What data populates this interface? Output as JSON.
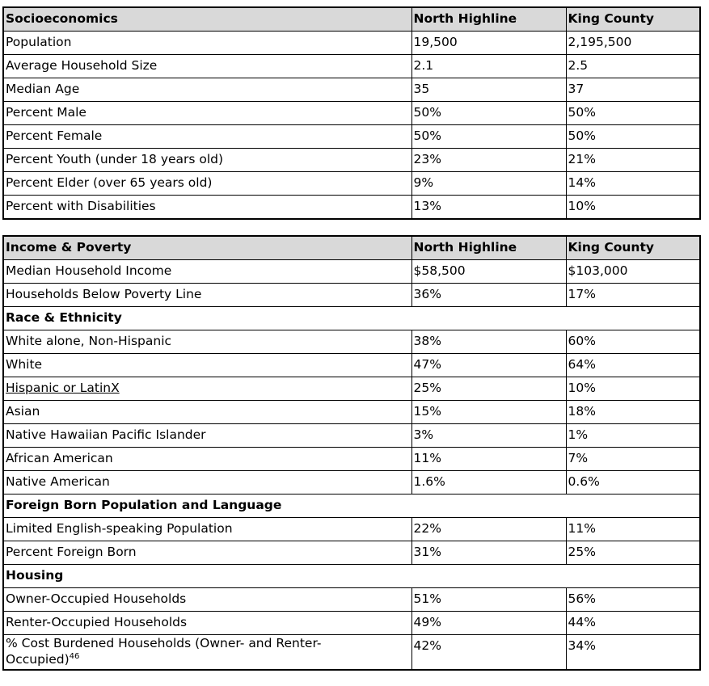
{
  "tables": [
    {
      "header": [
        "Socioeconomics",
        "North Highline",
        "King County"
      ],
      "rows": [
        [
          "Population",
          "19,500",
          "2,195,500"
        ],
        [
          "Average Household Size",
          "2.1",
          "2.5"
        ],
        [
          "Median Age",
          "35",
          "37"
        ],
        [
          "Percent Male",
          "50%",
          "50%"
        ],
        [
          "Percent Female",
          "50%",
          "50%"
        ],
        [
          "Percent Youth (under 18 years old)",
          "23%",
          "21%"
        ],
        [
          "Percent Elder (over 65 years old)",
          "9%",
          "14%"
        ],
        [
          "Percent with Disabilities",
          "13%",
          "10%"
        ]
      ]
    },
    {
      "header": [
        "Income & Poverty",
        "North Highline",
        "King County"
      ],
      "rows": [
        [
          "Median Household Income",
          "$58,500",
          "$103,000"
        ],
        [
          "Households Below Poverty Line",
          "36%",
          "17%"
        ],
        {
          "section": "Race & Ethnicity"
        },
        [
          "White alone, Non-Hispanic",
          "38%",
          "60%"
        ],
        [
          "White",
          "47%",
          "64%"
        ],
        {
          "cells": [
            "Hispanic or LatinX",
            "25%",
            "10%"
          ],
          "link": true
        },
        [
          "Asian",
          "15%",
          "18%"
        ],
        [
          "Native Hawaiian Pacific Islander",
          "3%",
          "1%"
        ],
        [
          "African American",
          "11%",
          "7%"
        ],
        [
          "Native American",
          "1.6%",
          "0.6%"
        ],
        {
          "section": "Foreign Born Population and Language"
        },
        [
          "Limited English-speaking Population",
          "22%",
          "11%"
        ],
        [
          "Percent Foreign Born",
          "31%",
          "25%"
        ],
        {
          "section": "Housing"
        },
        [
          "Owner-Occupied Households",
          "51%",
          "56%"
        ],
        [
          "Renter-Occupied Households",
          "49%",
          "44%"
        ],
        {
          "cells": [
            "% Cost Burdened Households (Owner- and Renter-Occupied)",
            "42%",
            "34%"
          ],
          "footnote": "46"
        }
      ]
    }
  ]
}
